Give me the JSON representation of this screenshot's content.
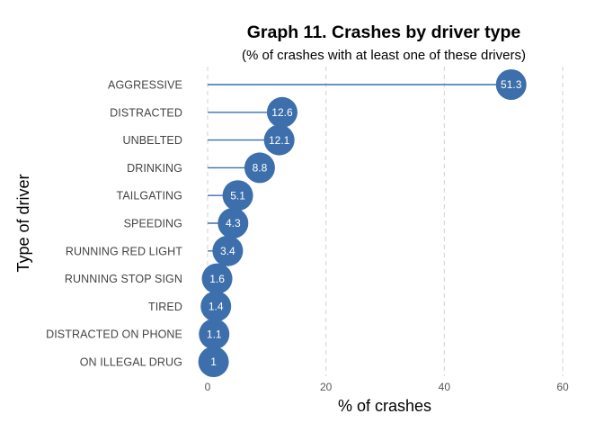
{
  "chart_data": {
    "type": "lollipop",
    "title": "Graph 11. Crashes by driver type",
    "subtitle": "(% of crashes with at least one of these drivers)",
    "xlabel": "% of crashes",
    "ylabel": "Type of driver",
    "xlim": [
      0,
      60
    ],
    "xticks": [
      0,
      20,
      40,
      60
    ],
    "grid": "vertical dashed",
    "color": "#3c6fab",
    "categories": [
      "AGGRESSIVE",
      "DISTRACTED",
      "UNBELTED",
      "DRINKING",
      "TAILGATING",
      "SPEEDING",
      "RUNNING RED LIGHT",
      "RUNNING STOP SIGN",
      "TIRED",
      "DISTRACTED ON PHONE",
      "ON ILLEGAL DRUG"
    ],
    "values": [
      51.3,
      12.6,
      12.1,
      8.8,
      5.1,
      4.3,
      3.4,
      1.6,
      1.4,
      1.1,
      1
    ],
    "value_labels": [
      "51.3",
      "12.6",
      "12.1",
      "8.8",
      "5.1",
      "4.3",
      "3.4",
      "1.6",
      "1.4",
      "1.1",
      "1"
    ]
  }
}
